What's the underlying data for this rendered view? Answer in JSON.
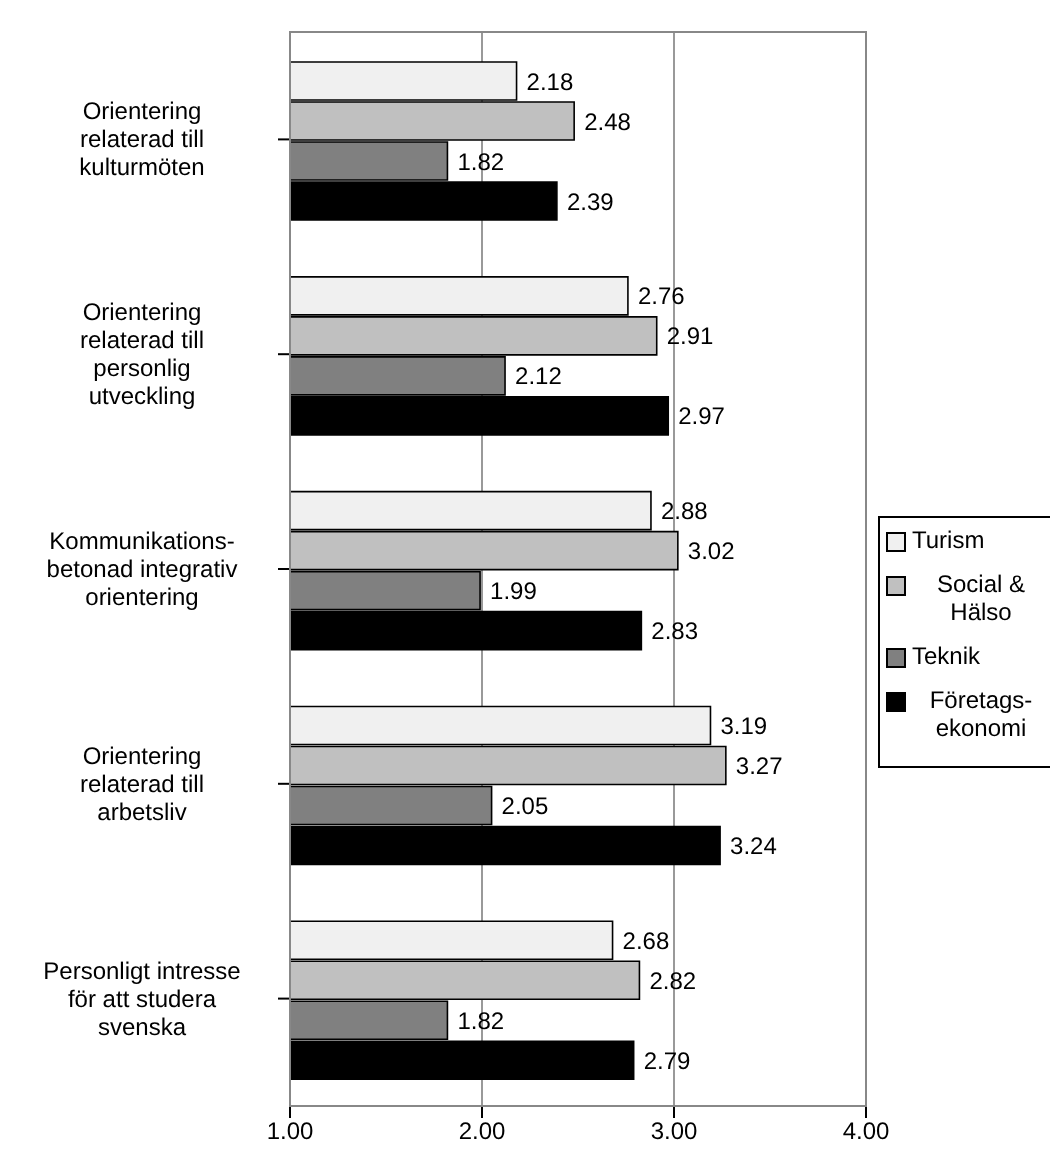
{
  "chart_data": {
    "type": "bar",
    "orientation": "horizontal",
    "categories": [
      "Orientering relaterad till kulturmöten",
      "Orientering relaterad till personlig utveckling",
      "Kommunikations-betonad integrativ orientering",
      "Orientering relaterad till arbetsliv",
      "Personligt intresse för att studera svenska"
    ],
    "series": [
      {
        "name": "Turism",
        "color": "#f0f0f0",
        "values": [
          2.18,
          2.76,
          2.88,
          3.19,
          2.68
        ]
      },
      {
        "name": "Social & Hälso",
        "color": "#c0c0c0",
        "values": [
          2.48,
          2.91,
          3.02,
          3.27,
          2.82
        ]
      },
      {
        "name": "Teknik",
        "color": "#808080",
        "values": [
          1.82,
          2.12,
          1.99,
          2.05,
          1.82
        ]
      },
      {
        "name": "Företags-ekonomi",
        "color": "#000000",
        "values": [
          2.39,
          2.97,
          2.83,
          3.24,
          2.79
        ]
      }
    ],
    "xlim": [
      1,
      4
    ],
    "xticks": [
      {
        "value": 1,
        "label": "1.00"
      },
      {
        "value": 2,
        "label": "2.00"
      },
      {
        "value": 3,
        "label": "3.00"
      },
      {
        "value": 4,
        "label": "4.00"
      }
    ],
    "grid": "x",
    "legend": "right",
    "data_labels": true
  }
}
